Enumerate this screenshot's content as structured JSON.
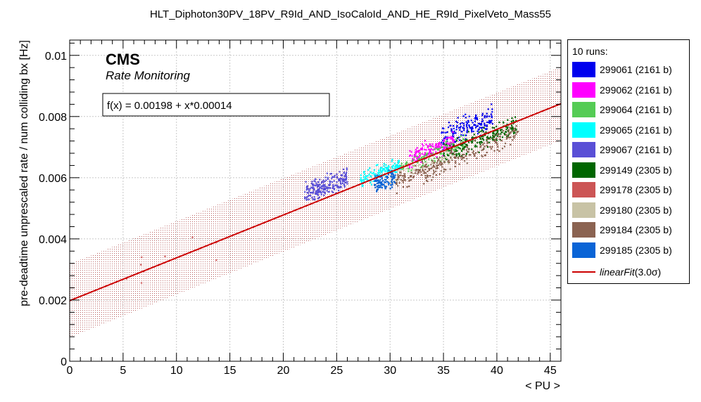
{
  "chart_data": {
    "type": "scatter",
    "title": "HLT_Diphoton30PV_18PV_R9Id_AND_IsoCaloId_AND_HE_R9Id_PixelVeto_Mass55",
    "xlabel": "< PU >",
    "ylabel": "pre-deadtime unprescaled rate / num colliding bx [Hz]",
    "xlim": [
      0,
      46
    ],
    "ylim": [
      0,
      0.0105
    ],
    "x_ticks": [
      "0",
      "5",
      "10",
      "15",
      "20",
      "25",
      "30",
      "35",
      "40",
      "45"
    ],
    "y_ticks": [
      "0",
      "0.002",
      "0.004",
      "0.006",
      "0.008",
      "0.01"
    ],
    "grid": true,
    "legend_position": "right-outside",
    "annotations": {
      "experiment": "CMS",
      "subtitle": "Rate Monitoring",
      "fit_formula": "f(x) = 0.00198 + x*0.00014"
    },
    "fit": {
      "name": "linearFit",
      "name_suffix": "(3.0σ)",
      "intercept": 0.00198,
      "slope": 0.00014,
      "band_sigma": 3.0,
      "band_halfwidth": 0.0012,
      "color": "#cc0000"
    },
    "legend_header": "10 runs:",
    "series": [
      {
        "name": "299061 (2161 b)",
        "color": "#0000ee",
        "x_range": [
          34.8,
          39.6
        ],
        "y_center_offset": 0.00045,
        "spread": 0.00055,
        "count": 170
      },
      {
        "name": "299062 (2161 b)",
        "color": "#ff00ff",
        "x_range": [
          31.8,
          36.0
        ],
        "y_center_offset": 0.0002,
        "spread": 0.0004,
        "count": 160
      },
      {
        "name": "299064 (2161 b)",
        "color": "#55cc55",
        "x_range": [
          31.0,
          37.0
        ],
        "y_center_offset": 0.0,
        "spread": 0.0004,
        "count": 120
      },
      {
        "name": "299065 (2161 b)",
        "color": "#00ffff",
        "x_range": [
          27.2,
          31.0
        ],
        "y_center_offset": 0.0001,
        "spread": 0.00035,
        "count": 140
      },
      {
        "name": "299067 (2161 b)",
        "color": "#5a4fd6",
        "x_range": [
          22.0,
          26.0
        ],
        "y_center_offset": 0.0004,
        "spread": 0.00045,
        "count": 230
      },
      {
        "name": "299149 (2305 b)",
        "color": "#006600",
        "x_range": [
          35.0,
          41.8
        ],
        "y_center_offset": -0.0001,
        "spread": 0.0005,
        "count": 200
      },
      {
        "name": "299178 (2305 b)",
        "color": "#cc5555",
        "x_range": [
          5.0,
          16.5
        ],
        "y_center_offset": 0.0,
        "spread": 0.0008,
        "count": 10
      },
      {
        "name": "299180 (2305 b)",
        "color": "#c8c3a5",
        "x_range": [
          30.0,
          36.0
        ],
        "y_center_offset": -0.0002,
        "spread": 0.0004,
        "count": 60
      },
      {
        "name": "299184 (2305 b)",
        "color": "#8b6351",
        "x_range": [
          30.5,
          42.0
        ],
        "y_center_offset": -0.0004,
        "spread": 0.00045,
        "count": 260
      },
      {
        "name": "299185 (2305 b)",
        "color": "#0a64d6",
        "x_range": [
          28.5,
          30.5
        ],
        "y_center_offset": -0.0002,
        "spread": 0.0004,
        "count": 100
      }
    ]
  }
}
